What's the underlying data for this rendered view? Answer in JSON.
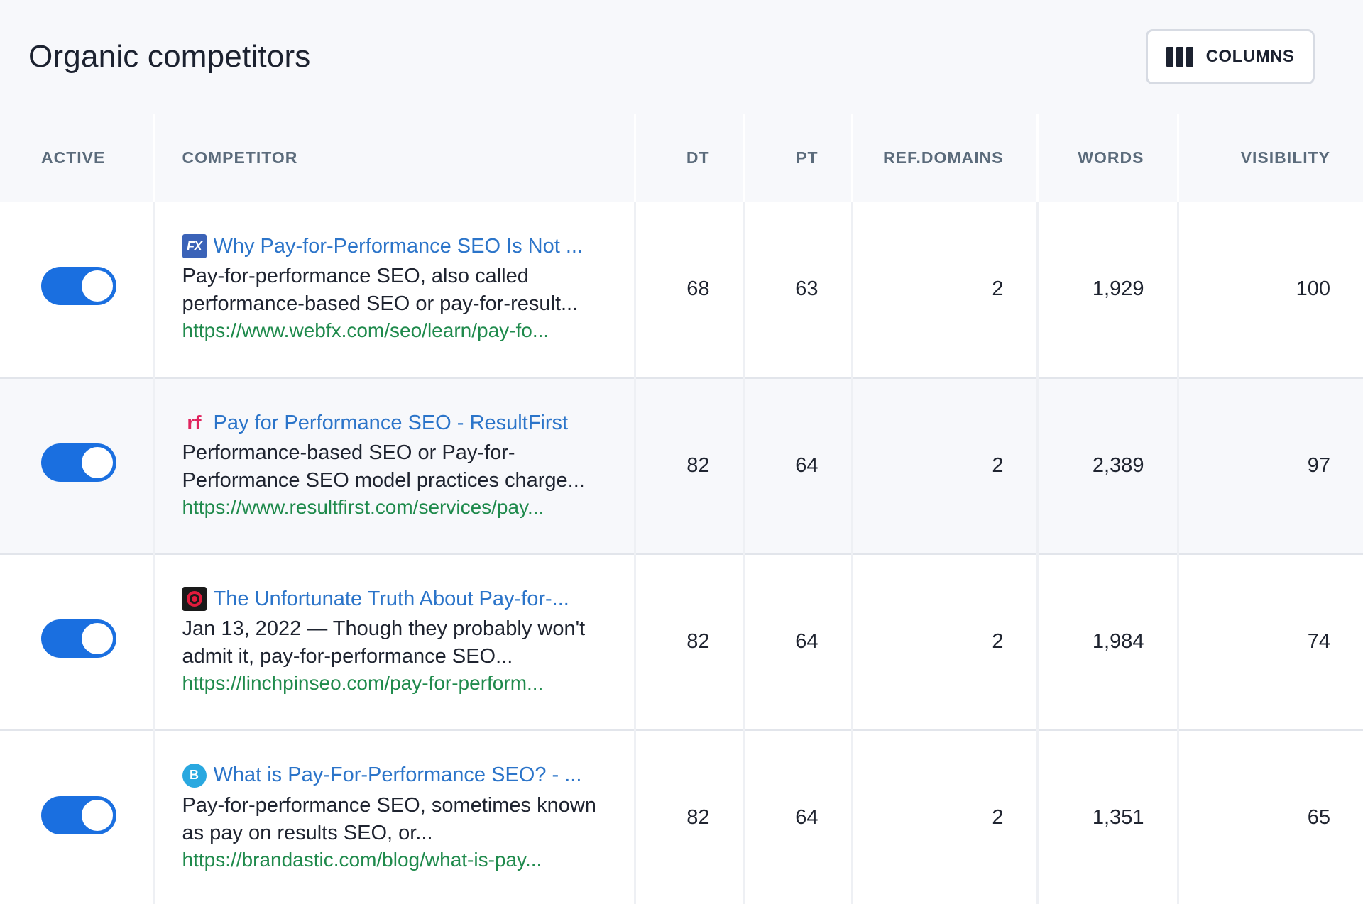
{
  "header": {
    "title": "Organic competitors",
    "columns_button_label": "COLUMNS"
  },
  "table": {
    "headers": {
      "active": "ACTIVE",
      "competitor": "COMPETITOR",
      "dt": "DT",
      "pt": "PT",
      "ref_domains": "REF.DOMAINS",
      "words": "WORDS",
      "visibility": "VISIBILITY"
    },
    "rows": [
      {
        "active": true,
        "favicon": "webfx-icon",
        "favicon_text": "FX",
        "title": "Why Pay-for-Performance SEO Is Not ...",
        "snippet": "Pay-for-performance SEO, also called performance-based SEO or pay-for-result...",
        "url": "https://www.webfx.com/seo/learn/pay-fo...",
        "dt": "68",
        "pt": "63",
        "ref_domains": "2",
        "words": "1,929",
        "visibility": "100"
      },
      {
        "active": true,
        "favicon": "resultfirst-icon",
        "favicon_text": "rf",
        "title": "Pay for Performance SEO - ResultFirst",
        "snippet": "Performance-based SEO or Pay-for-Performance SEO model practices charge...",
        "url": "https://www.resultfirst.com/services/pay...",
        "dt": "82",
        "pt": "64",
        "ref_domains": "2",
        "words": "2,389",
        "visibility": "97"
      },
      {
        "active": true,
        "favicon": "linchpin-icon",
        "favicon_text": "",
        "title": "The Unfortunate Truth About Pay-for-...",
        "snippet": "Jan 13, 2022 — Though they probably won't admit it, pay-for-performance SEO...",
        "url": "https://linchpinseo.com/pay-for-perform...",
        "dt": "82",
        "pt": "64",
        "ref_domains": "2",
        "words": "1,984",
        "visibility": "74"
      },
      {
        "active": true,
        "favicon": "brandastic-icon",
        "favicon_text": "B",
        "title": "What is Pay-For-Performance SEO? - ...",
        "snippet": "Pay-for-performance SEO, sometimes known as pay on results SEO, or...",
        "url": "https://brandastic.com/blog/what-is-pay...",
        "dt": "82",
        "pt": "64",
        "ref_domains": "2",
        "words": "1,351",
        "visibility": "65"
      }
    ]
  }
}
